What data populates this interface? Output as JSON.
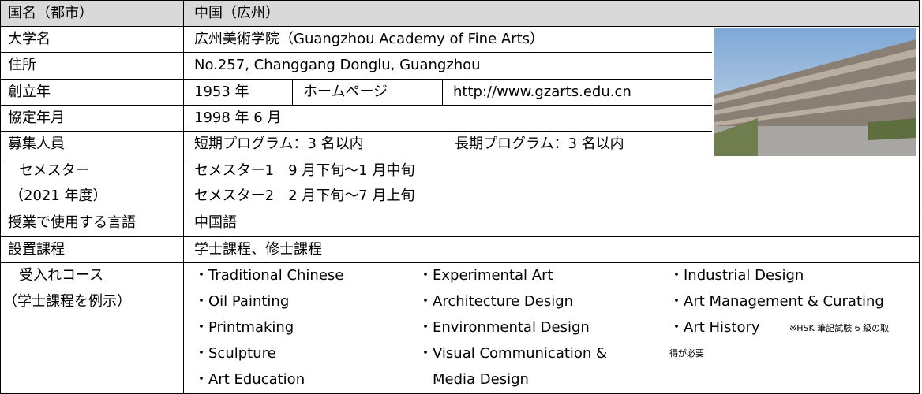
{
  "table": {
    "country": {
      "label": "国名（都市）",
      "value": "中国（広州）"
    },
    "university": {
      "label": "大学名",
      "value": "広州美術学院（Guangzhou Academy of Fine Arts）"
    },
    "address": {
      "label": "住所",
      "value": "No.257, Changgang Donglu, Guangzhou"
    },
    "founded": {
      "label": "創立年",
      "value": "1953 年",
      "homepage_label": "ホームページ",
      "homepage": "http://www.gzarts.edu.cn"
    },
    "agreement": {
      "label": "協定年月",
      "value": "1998 年 6 月"
    },
    "recruitment": {
      "label": "募集人員",
      "short": "短期プログラム：3 名以内",
      "long": "長期プログラム：3 名以内"
    },
    "semester": {
      "label": [
        "セメスター",
        "（2021 年度）"
      ],
      "values": [
        "セメスター1　9 月下旬～1 月中旬",
        "セメスター2　2 月下旬～7 月上旬"
      ]
    },
    "language": {
      "label": "授業で使用する言語",
      "value": "中国語"
    },
    "programs": {
      "label": "設置課程",
      "value": "学士課程、修士課程"
    },
    "courses": {
      "label": [
        "受入れコース",
        "（学士課程を例示）"
      ],
      "columns": [
        [
          "・Traditional Chinese",
          "・Oil Painting",
          "・Printmaking",
          "・Sculpture",
          "・Art Education"
        ],
        [
          "・Experimental Art",
          "・Architecture Design",
          "・Environmental Design",
          "・Visual Communication &",
          "Media Design"
        ],
        [
          "・Industrial Design",
          "・Art Management & Curating",
          "・Art History"
        ]
      ],
      "note": [
        "※HSK 筆記試験 6 級の取",
        "得が必要"
      ]
    }
  }
}
